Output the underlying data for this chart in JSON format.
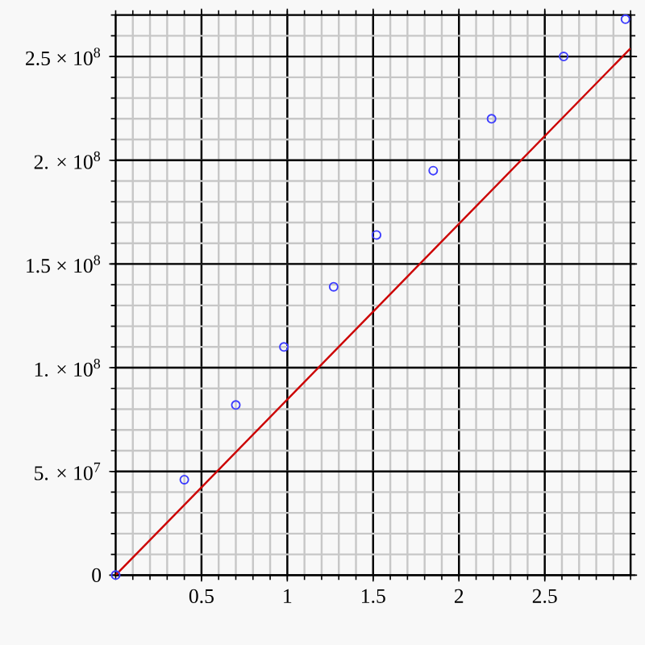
{
  "chart_data": {
    "type": "scatter",
    "xlim": [
      0,
      3
    ],
    "ylim": [
      0,
      270000000
    ],
    "xticks": [
      0.5,
      1,
      1.5,
      2,
      2.5
    ],
    "yticks": [
      0,
      {
        "value": 50000000,
        "label": "5. × 10$^{7}$"
      },
      {
        "value": 100000000,
        "label": "1. × 10$^{8}$"
      },
      {
        "value": 150000000,
        "label": "1.5 × 10$^{8}$"
      },
      {
        "value": 200000000,
        "label": "2. × 10$^{8}$"
      },
      {
        "value": 250000000,
        "label": "2.5 × 10$^{8}$"
      }
    ],
    "grid": true,
    "series": [
      {
        "marker": "circle",
        "color": "#3c3cff",
        "x": [
          0,
          0.4,
          0.7,
          0.98,
          1.27,
          1.52,
          1.85,
          2.19,
          2.61,
          2.97
        ],
        "values": [
          0,
          46000000,
          82000000,
          110000000,
          139000000,
          164000000,
          195000000,
          220000000,
          250000000,
          268000000
        ]
      },
      {
        "type": "line",
        "color": "#cc0000",
        "x": [
          0,
          3
        ],
        "values": [
          0,
          254000000
        ]
      }
    ]
  }
}
